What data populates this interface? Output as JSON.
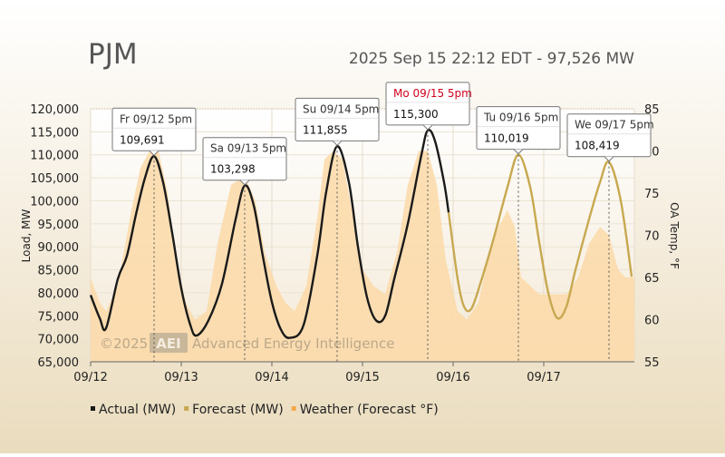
{
  "header": {
    "region": "PJM",
    "status": "2025 Sep 15 22:12 EDT - 97,526 MW"
  },
  "watermark": {
    "copyright": "©2025",
    "logo": "AEI",
    "company": "Advanced Energy Intelligence"
  },
  "colors": {
    "actual": "#1a1a1a",
    "forecast": "#c8a850",
    "weather_fill": "#fbd9a8",
    "highlight_label": "#d0021b"
  },
  "chart_data": {
    "type": "line",
    "x_tick_labels": [
      "09/12",
      "09/13",
      "09/14",
      "09/15",
      "09/16",
      "09/17"
    ],
    "x_range_days": [
      0,
      6
    ],
    "ylabel": "Load, MW",
    "ylim": [
      65000,
      120000
    ],
    "y_ticks": [
      "65,000",
      "70,000",
      "75,000",
      "80,000",
      "85,000",
      "90,000",
      "95,000",
      "100,000",
      "105,000",
      "110,000",
      "115,000",
      "120,000"
    ],
    "y2label": "OA Temp, °F",
    "y2lim": [
      55,
      85
    ],
    "y2_ticks": [
      "55",
      "60",
      "65",
      "70",
      "75",
      "80",
      "85"
    ],
    "legend": {
      "placement": "bottom-left",
      "items": [
        {
          "key": "actual",
          "label": "Actual (MW)"
        },
        {
          "key": "forecast",
          "label": "Forecast (MW)"
        },
        {
          "key": "weather",
          "label": "Weather (Forecast °F)"
        }
      ]
    },
    "series": [
      {
        "key": "actual",
        "name": "Actual (MW)",
        "points": [
          [
            0.0,
            79500
          ],
          [
            0.1,
            74500
          ],
          [
            0.17,
            72300
          ],
          [
            0.3,
            83000
          ],
          [
            0.4,
            88000
          ],
          [
            0.5,
            97000
          ],
          [
            0.6,
            105000
          ],
          [
            0.7,
            109691
          ],
          [
            0.8,
            104000
          ],
          [
            0.9,
            93000
          ],
          [
            1.0,
            81000
          ],
          [
            1.1,
            73000
          ],
          [
            1.17,
            70700
          ],
          [
            1.3,
            74000
          ],
          [
            1.45,
            82000
          ],
          [
            1.6,
            96000
          ],
          [
            1.7,
            103298
          ],
          [
            1.8,
            99000
          ],
          [
            1.9,
            88000
          ],
          [
            2.0,
            78000
          ],
          [
            2.1,
            72000
          ],
          [
            2.2,
            70200
          ],
          [
            2.35,
            73000
          ],
          [
            2.5,
            88000
          ],
          [
            2.6,
            102000
          ],
          [
            2.72,
            111855
          ],
          [
            2.85,
            104000
          ],
          [
            2.95,
            90000
          ],
          [
            3.05,
            79000
          ],
          [
            3.15,
            74000
          ],
          [
            3.25,
            75000
          ],
          [
            3.35,
            83000
          ],
          [
            3.5,
            95000
          ],
          [
            3.65,
            110000
          ],
          [
            3.72,
            115300
          ],
          [
            3.8,
            113000
          ],
          [
            3.9,
            104000
          ],
          [
            3.95,
            97500
          ]
        ]
      },
      {
        "key": "forecast",
        "name": "Forecast (MW)",
        "points": [
          [
            3.95,
            97500
          ],
          [
            4.05,
            83000
          ],
          [
            4.12,
            77000
          ],
          [
            4.2,
            76500
          ],
          [
            4.3,
            82000
          ],
          [
            4.45,
            92000
          ],
          [
            4.6,
            103000
          ],
          [
            4.72,
            110019
          ],
          [
            4.85,
            103000
          ],
          [
            4.95,
            91000
          ],
          [
            5.05,
            80000
          ],
          [
            5.15,
            74500
          ],
          [
            5.25,
            77000
          ],
          [
            5.35,
            85000
          ],
          [
            5.5,
            96000
          ],
          [
            5.62,
            104000
          ],
          [
            5.72,
            108419
          ],
          [
            5.85,
            100000
          ],
          [
            5.97,
            83500
          ]
        ]
      },
      {
        "key": "weather",
        "name": "Weather (Forecast °F)",
        "points": [
          [
            0.0,
            65
          ],
          [
            0.1,
            62
          ],
          [
            0.17,
            61
          ],
          [
            0.3,
            64
          ],
          [
            0.45,
            73
          ],
          [
            0.55,
            78
          ],
          [
            0.65,
            80
          ],
          [
            0.75,
            80
          ],
          [
            0.85,
            75
          ],
          [
            0.95,
            67
          ],
          [
            1.05,
            62
          ],
          [
            1.15,
            60
          ],
          [
            1.28,
            61
          ],
          [
            1.4,
            69
          ],
          [
            1.55,
            76
          ],
          [
            1.7,
            77
          ],
          [
            1.82,
            74
          ],
          [
            1.92,
            68
          ],
          [
            2.05,
            64
          ],
          [
            2.15,
            62
          ],
          [
            2.25,
            61
          ],
          [
            2.38,
            64
          ],
          [
            2.5,
            72
          ],
          [
            2.58,
            79
          ],
          [
            2.68,
            80
          ],
          [
            2.78,
            79
          ],
          [
            2.9,
            72
          ],
          [
            3.0,
            66
          ],
          [
            3.12,
            64
          ],
          [
            3.25,
            63
          ],
          [
            3.38,
            68
          ],
          [
            3.5,
            76
          ],
          [
            3.62,
            80
          ],
          [
            3.72,
            80
          ],
          [
            3.82,
            76
          ],
          [
            3.92,
            67
          ],
          [
            4.05,
            61
          ],
          [
            4.15,
            60
          ],
          [
            4.28,
            62
          ],
          [
            4.4,
            68
          ],
          [
            4.5,
            71
          ],
          [
            4.6,
            73
          ],
          [
            4.68,
            71
          ],
          [
            4.75,
            65
          ],
          [
            4.85,
            64
          ],
          [
            4.95,
            63
          ],
          [
            5.1,
            63
          ],
          [
            5.25,
            63
          ],
          [
            5.38,
            65
          ],
          [
            5.5,
            69
          ],
          [
            5.62,
            71
          ],
          [
            5.72,
            70
          ],
          [
            5.82,
            66
          ],
          [
            5.9,
            65
          ],
          [
            6.0,
            65
          ]
        ]
      }
    ],
    "annotations": [
      {
        "x": 0.7,
        "y": 109691,
        "label": "Fr 09/12 5pm",
        "value": "109,691",
        "highlight": false
      },
      {
        "x": 1.7,
        "y": 103298,
        "label": "Sa 09/13 5pm",
        "value": "103,298",
        "highlight": false
      },
      {
        "x": 2.72,
        "y": 111855,
        "label": "Su 09/14 5pm",
        "value": "111,855",
        "highlight": false
      },
      {
        "x": 3.72,
        "y": 115300,
        "label": "Mo 09/15 5pm",
        "value": "115,300",
        "highlight": true
      },
      {
        "x": 4.72,
        "y": 110019,
        "label": "Tu 09/16 5pm",
        "value": "110,019",
        "highlight": false
      },
      {
        "x": 5.72,
        "y": 108419,
        "label": "We 09/17 5pm",
        "value": "108,419",
        "highlight": false
      }
    ]
  }
}
